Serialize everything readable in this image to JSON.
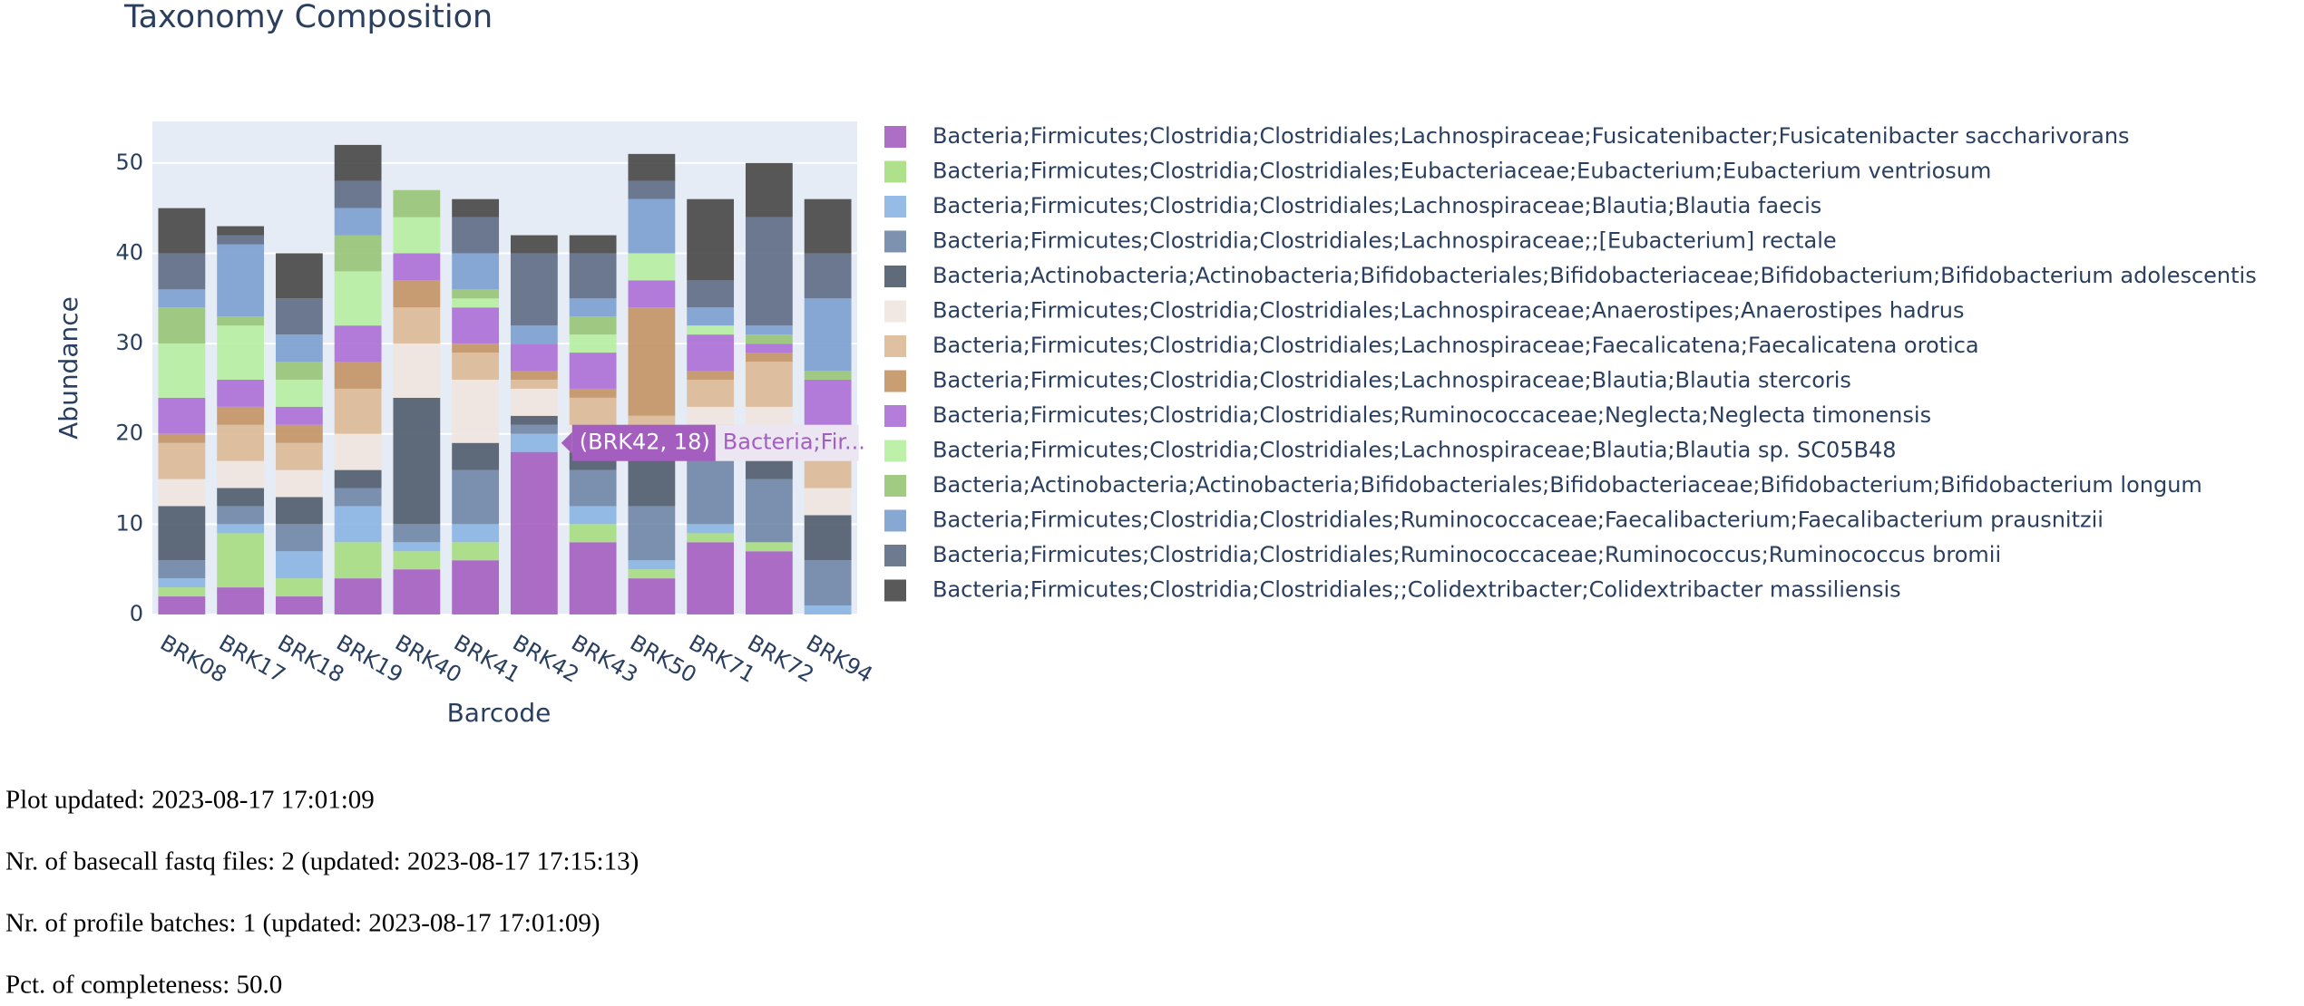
{
  "chart_data": {
    "type": "stacked_bar",
    "title": "Taxonomy Composition",
    "x_label": "Barcode",
    "y_label": "Abundance",
    "categories": [
      "BRK08",
      "BRK17",
      "BRK18",
      "BRK19",
      "BRK40",
      "BRK41",
      "BRK42",
      "BRK43",
      "BRK50",
      "BRK71",
      "BRK72",
      "BRK94"
    ],
    "ylim": [
      0,
      54.6
    ],
    "yticks": [
      0,
      10,
      20,
      30,
      40,
      50
    ],
    "grid": true,
    "series": [
      {
        "name": "Bacteria;Firmicutes;Clostridia;Clostridiales;Lachnospiraceae;Fusicatenibacter;Fusicatenibacter saccharivorans",
        "color": "#a45ec0",
        "values": [
          2,
          3,
          2,
          4,
          5,
          6,
          18,
          8,
          4,
          8,
          7,
          0
        ]
      },
      {
        "name": "Bacteria;Firmicutes;Clostridia;Clostridiales;Eubacteriaceae;Eubacterium;Eubacterium ventriosum",
        "color": "#a6dd7f",
        "values": [
          1,
          6,
          2,
          4,
          2,
          2,
          0,
          2,
          1,
          1,
          1,
          0
        ]
      },
      {
        "name": "Bacteria;Firmicutes;Clostridia;Clostridiales;Lachnospiraceae;Blautia;Blautia faecis",
        "color": "#8ab4e3",
        "values": [
          1,
          1,
          3,
          4,
          1,
          2,
          2,
          2,
          1,
          1,
          0,
          1
        ]
      },
      {
        "name": "Bacteria;Firmicutes;Clostridia;Clostridiales;Lachnospiraceae;;[Eubacterium] rectale",
        "color": "#6f86a6",
        "values": [
          2,
          2,
          3,
          2,
          2,
          6,
          1,
          4,
          6,
          8,
          7,
          5
        ]
      },
      {
        "name": "Bacteria;Actinobacteria;Actinobacteria;Bifidobacteriales;Bifidobacteriaceae;Bifidobacterium;Bifidobacterium adolescentis",
        "color": "#4f5b6b",
        "values": [
          6,
          2,
          3,
          2,
          14,
          3,
          1,
          2,
          6,
          3,
          5,
          5
        ]
      },
      {
        "name": "Bacteria;Firmicutes;Clostridia;Clostridiales;Lachnospiraceae;Anaerostipes;Anaerostipes hadrus",
        "color": "#efe6e0",
        "values": [
          3,
          3,
          3,
          4,
          6,
          7,
          3,
          3,
          2,
          2,
          3,
          3
        ]
      },
      {
        "name": "Bacteria;Firmicutes;Clostridia;Clostridiales;Lachnospiraceae;Faecalicatena;Faecalicatena orotica",
        "color": "#dbb996",
        "values": [
          4,
          4,
          3,
          5,
          4,
          3,
          1,
          3,
          2,
          3,
          5,
          5
        ]
      },
      {
        "name": "Bacteria;Firmicutes;Clostridia;Clostridiales;Lachnospiraceae;Blautia;Blautia stercoris",
        "color": "#c39364",
        "values": [
          1,
          2,
          2,
          3,
          3,
          1,
          1,
          1,
          12,
          1,
          1,
          1
        ]
      },
      {
        "name": "Bacteria;Firmicutes;Clostridia;Clostridiales;Ruminococcaceae;Neglecta;Neglecta timonensis",
        "color": "#ad6fd6",
        "values": [
          4,
          3,
          2,
          4,
          3,
          4,
          3,
          4,
          3,
          4,
          1,
          6
        ]
      },
      {
        "name": "Bacteria;Firmicutes;Clostridia;Clostridiales;Lachnospiraceae;Blautia;Blautia sp. SC05B48",
        "color": "#b6eea0",
        "values": [
          6,
          6,
          3,
          6,
          4,
          1,
          0,
          2,
          3,
          1,
          0,
          0
        ]
      },
      {
        "name": "Bacteria;Actinobacteria;Actinobacteria;Bifidobacteriales;Bifidobacteriaceae;Bifidobacterium;Bifidobacterium longum",
        "color": "#97c475",
        "values": [
          4,
          1,
          2,
          4,
          3,
          1,
          0,
          2,
          0,
          0,
          1,
          1
        ]
      },
      {
        "name": "Bacteria;Firmicutes;Clostridia;Clostridiales;Ruminococcaceae;Faecalibacterium;Faecalibacterium prausnitzii",
        "color": "#7b9fcf",
        "values": [
          2,
          8,
          3,
          3,
          0,
          4,
          2,
          2,
          6,
          2,
          1,
          8
        ]
      },
      {
        "name": "Bacteria;Firmicutes;Clostridia;Clostridiales;Ruminococcaceae;Ruminococcus;Ruminococcus bromii",
        "color": "#5d6c84",
        "values": [
          4,
          1,
          4,
          3,
          0,
          4,
          8,
          5,
          2,
          3,
          12,
          5
        ]
      },
      {
        "name": "Bacteria;Firmicutes;Clostridia;Clostridiales;;Colidextribacter;Colidextribacter massiliensis",
        "color": "#474747",
        "values": [
          5,
          1,
          5,
          4,
          0,
          2,
          2,
          2,
          3,
          9,
          6,
          6
        ]
      }
    ],
    "tooltip": {
      "label": "(BRK42, 18)",
      "name": "Bacteria;Fir..."
    }
  },
  "status": [
    "Plot updated: 2023-08-17 17:01:09",
    "Nr. of basecall fastq files: 2 (updated: 2023-08-17 17:15:13)",
    "Nr. of profile batches: 1 (updated: 2023-08-17 17:01:09)",
    "Pct. of completeness: 50.0"
  ]
}
